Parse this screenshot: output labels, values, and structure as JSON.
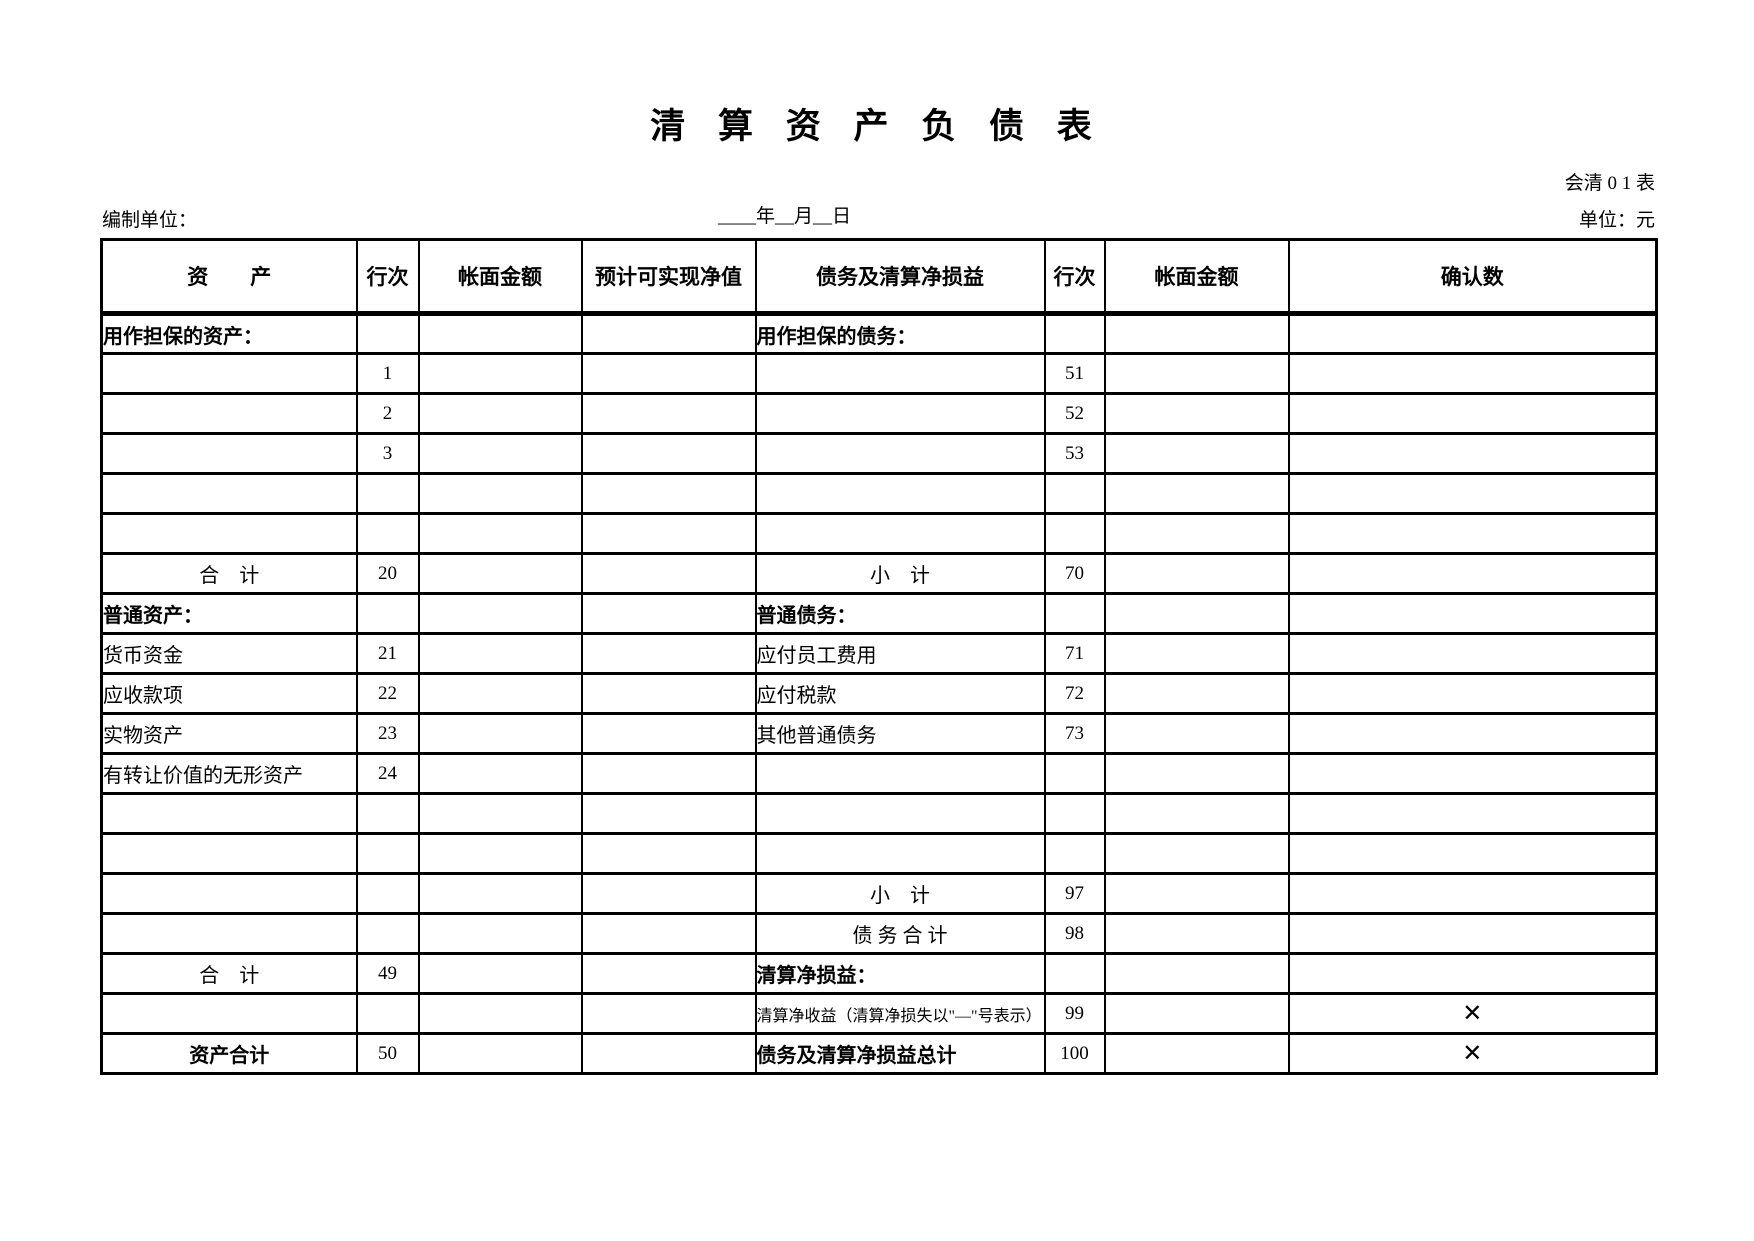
{
  "title": "清 算 资 产 负 债 表",
  "meta": {
    "form_code": "会清 0 1 表",
    "prepared_by_label": "编制单位：",
    "date_line": "____年__月__日",
    "unit_label": "单位：元"
  },
  "table": {
    "headers": [
      "资　　产",
      "行次",
      "帐面金额",
      "预计可实现净值",
      "债务及清算净损益",
      "行次",
      "帐面金额",
      "确认数"
    ],
    "rows": [
      {
        "cells": [
          {
            "t": "用作担保的资产：",
            "s": "section",
            "n": "secured-assets-section-label"
          },
          {},
          {},
          {},
          {
            "t": "用作担保的债务：",
            "s": "section",
            "n": "secured-liabilities-section-label"
          },
          {},
          {},
          {}
        ]
      },
      {
        "cells": [
          {},
          {
            "t": "1",
            "s": "lineno",
            "n": "line-no"
          },
          {},
          {},
          {},
          {
            "t": "51",
            "s": "lineno",
            "n": "line-no"
          },
          {},
          {}
        ]
      },
      {
        "cells": [
          {},
          {
            "t": "2",
            "s": "lineno",
            "n": "line-no"
          },
          {},
          {},
          {},
          {
            "t": "52",
            "s": "lineno",
            "n": "line-no"
          },
          {},
          {}
        ]
      },
      {
        "cells": [
          {},
          {
            "t": "3",
            "s": "lineno",
            "n": "line-no"
          },
          {},
          {},
          {},
          {
            "t": "53",
            "s": "lineno",
            "n": "line-no"
          },
          {},
          {}
        ]
      },
      {
        "cells": [
          {},
          {},
          {},
          {},
          {},
          {},
          {},
          {}
        ]
      },
      {
        "cells": [
          {},
          {},
          {},
          {},
          {},
          {},
          {},
          {}
        ]
      },
      {
        "cells": [
          {
            "t": "合　计",
            "s": "total",
            "n": "secured-assets-total-label"
          },
          {
            "t": "20",
            "s": "lineno",
            "n": "line-no"
          },
          {},
          {},
          {
            "t": "小　计",
            "s": "total",
            "n": "secured-liabilities-subtotal-label"
          },
          {
            "t": "70",
            "s": "lineno",
            "n": "line-no"
          },
          {},
          {}
        ]
      },
      {
        "cells": [
          {
            "t": "普通资产：",
            "s": "section",
            "n": "ordinary-assets-section-label"
          },
          {},
          {},
          {},
          {
            "t": "普通债务：",
            "s": "section",
            "n": "ordinary-liabilities-section-label"
          },
          {},
          {},
          {}
        ]
      },
      {
        "cells": [
          {
            "t": "货币资金",
            "s": "item",
            "n": "monetary-funds-label"
          },
          {
            "t": "21",
            "s": "lineno",
            "n": "line-no"
          },
          {},
          {},
          {
            "t": "应付员工费用",
            "s": "item",
            "n": "employee-payables-label"
          },
          {
            "t": "71",
            "s": "lineno",
            "n": "line-no"
          },
          {},
          {}
        ]
      },
      {
        "cells": [
          {
            "t": "应收款项",
            "s": "item",
            "n": "receivables-label"
          },
          {
            "t": "22",
            "s": "lineno",
            "n": "line-no"
          },
          {},
          {},
          {
            "t": "应付税款",
            "s": "item",
            "n": "taxes-payable-label"
          },
          {
            "t": "72",
            "s": "lineno",
            "n": "line-no"
          },
          {},
          {}
        ]
      },
      {
        "cells": [
          {
            "t": "实物资产",
            "s": "item",
            "n": "physical-assets-label"
          },
          {
            "t": "23",
            "s": "lineno",
            "n": "line-no"
          },
          {},
          {},
          {
            "t": "其他普通债务",
            "s": "item",
            "n": "other-ordinary-liabilities-label"
          },
          {
            "t": "73",
            "s": "lineno",
            "n": "line-no"
          },
          {},
          {}
        ]
      },
      {
        "cells": [
          {
            "t": "有转让价值的无形资产",
            "s": "item",
            "n": "transferable-intangible-assets-label"
          },
          {
            "t": "24",
            "s": "lineno",
            "n": "line-no"
          },
          {},
          {},
          {},
          {},
          {},
          {}
        ]
      },
      {
        "cells": [
          {},
          {},
          {},
          {},
          {},
          {},
          {},
          {}
        ]
      },
      {
        "cells": [
          {},
          {},
          {},
          {},
          {},
          {},
          {},
          {}
        ]
      },
      {
        "cells": [
          {},
          {},
          {},
          {},
          {
            "t": "小　计",
            "s": "total",
            "n": "ordinary-liabilities-subtotal-label"
          },
          {
            "t": "97",
            "s": "lineno",
            "n": "line-no"
          },
          {},
          {}
        ]
      },
      {
        "cells": [
          {},
          {},
          {},
          {},
          {
            "t": "债 务 合 计",
            "s": "total",
            "n": "liabilities-total-label"
          },
          {
            "t": "98",
            "s": "lineno",
            "n": "line-no"
          },
          {},
          {}
        ]
      },
      {
        "cells": [
          {
            "t": "合　计",
            "s": "total",
            "n": "ordinary-assets-total-label"
          },
          {
            "t": "49",
            "s": "lineno",
            "n": "line-no"
          },
          {},
          {},
          {
            "t": "清算净损益：",
            "s": "section",
            "n": "liquidation-net-gain-loss-section-label"
          },
          {},
          {},
          {}
        ]
      },
      {
        "cells": [
          {},
          {},
          {},
          {},
          {
            "t": "清算净收益（清算净损失以\"—\"号表示）",
            "s": "note",
            "n": "liquidation-net-income-label"
          },
          {
            "t": "99",
            "s": "lineno",
            "n": "line-no"
          },
          {},
          {
            "t": "✕",
            "s": "x",
            "n": "x-mark"
          }
        ]
      },
      {
        "cells": [
          {
            "t": "资产合计",
            "s": "grand",
            "n": "assets-grand-total-label"
          },
          {
            "t": "50",
            "s": "lineno",
            "n": "line-no"
          },
          {},
          {},
          {
            "t": "债务及清算净损益总计",
            "s": "section",
            "n": "liabilities-and-net-gain-loss-grand-total-label"
          },
          {
            "t": "100",
            "s": "lineno",
            "n": "line-no"
          },
          {},
          {
            "t": "✕",
            "s": "x",
            "n": "x-mark"
          }
        ]
      }
    ]
  }
}
